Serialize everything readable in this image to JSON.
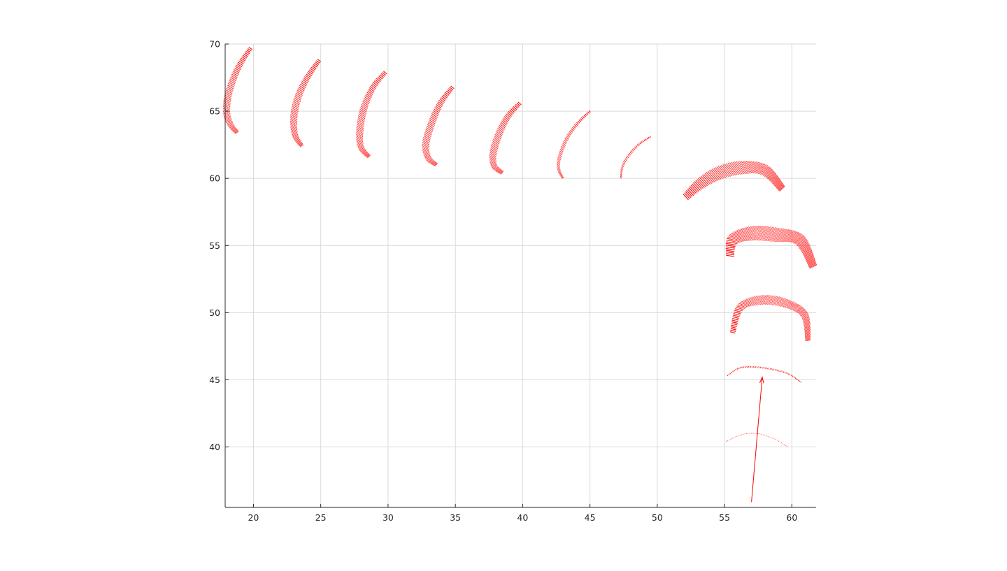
{
  "chart_data": {
    "type": "line",
    "title": "",
    "xlabel": "",
    "ylabel": "",
    "xlim": [
      17.9,
      61.8
    ],
    "ylim": [
      35.5,
      70
    ],
    "xticks": [
      20,
      25,
      30,
      35,
      40,
      45,
      50,
      55,
      60
    ],
    "yticks": [
      40,
      45,
      50,
      55,
      60,
      65,
      70
    ],
    "grid": true,
    "colors": {
      "series": "#ff0000",
      "grid": "#d9d9d9",
      "axis": "#262626"
    },
    "series": [
      {
        "kind": "wavefront",
        "rays": 14,
        "points": [
          [
            19.8,
            69.7
          ],
          [
            18.9,
            68.3
          ],
          [
            18.2,
            66.5
          ],
          [
            18.0,
            65.0
          ],
          [
            18.3,
            64.0
          ],
          [
            18.8,
            63.4
          ]
        ]
      },
      {
        "kind": "wavefront",
        "rays": 14,
        "points": [
          [
            24.9,
            68.8
          ],
          [
            24.0,
            67.5
          ],
          [
            23.3,
            66.0
          ],
          [
            23.0,
            64.5
          ],
          [
            23.1,
            63.2
          ],
          [
            23.6,
            62.4
          ]
        ]
      },
      {
        "kind": "wavefront",
        "rays": 14,
        "points": [
          [
            29.8,
            67.9
          ],
          [
            28.9,
            66.8
          ],
          [
            28.2,
            65.2
          ],
          [
            27.9,
            63.5
          ],
          [
            28.0,
            62.3
          ],
          [
            28.6,
            61.6
          ]
        ]
      },
      {
        "kind": "wavefront",
        "rays": 14,
        "points": [
          [
            34.8,
            66.8
          ],
          [
            33.9,
            65.6
          ],
          [
            33.2,
            64.0
          ],
          [
            32.8,
            62.5
          ],
          [
            33.0,
            61.5
          ],
          [
            33.6,
            61.0
          ]
        ]
      },
      {
        "kind": "wavefront",
        "rays": 14,
        "points": [
          [
            39.8,
            65.6
          ],
          [
            38.9,
            64.6
          ],
          [
            38.2,
            63.2
          ],
          [
            37.8,
            61.8
          ],
          [
            37.9,
            60.9
          ],
          [
            38.5,
            60.4
          ]
        ]
      },
      {
        "kind": "wavefront",
        "rays": 7,
        "points": [
          [
            45.0,
            65.0
          ],
          [
            44.0,
            64.0
          ],
          [
            43.2,
            62.8
          ],
          [
            42.7,
            61.4
          ],
          [
            42.7,
            60.6
          ],
          [
            43.0,
            60.0
          ]
        ]
      },
      {
        "kind": "wavefront",
        "rays": 5,
        "points": [
          [
            49.5,
            63.1
          ],
          [
            48.6,
            62.5
          ],
          [
            47.8,
            61.6
          ],
          [
            47.4,
            60.8
          ],
          [
            47.3,
            60.0
          ]
        ]
      },
      {
        "kind": "wavefront",
        "rays": 26,
        "points": [
          [
            52.1,
            58.6
          ],
          [
            53.2,
            59.6
          ],
          [
            54.6,
            60.4
          ],
          [
            56.3,
            60.8
          ],
          [
            58.0,
            60.6
          ],
          [
            59.3,
            59.2
          ]
        ]
      },
      {
        "kind": "wavefront",
        "rays": 28,
        "points": [
          [
            55.4,
            54.2
          ],
          [
            55.6,
            55.4
          ],
          [
            57.0,
            55.9
          ],
          [
            58.8,
            55.8
          ],
          [
            60.6,
            55.4
          ],
          [
            61.6,
            53.4
          ]
        ]
      },
      {
        "kind": "wavefront",
        "rays": 18,
        "points": [
          [
            55.6,
            48.5
          ],
          [
            56.1,
            50.3
          ],
          [
            57.4,
            50.9
          ],
          [
            59.2,
            50.8
          ],
          [
            60.9,
            49.9
          ],
          [
            61.2,
            47.9
          ]
        ]
      },
      {
        "kind": "wavefront",
        "rays": 3,
        "points": [
          [
            55.2,
            45.3
          ],
          [
            56.2,
            45.9
          ],
          [
            57.8,
            45.9
          ],
          [
            59.6,
            45.5
          ],
          [
            60.7,
            44.8
          ]
        ]
      },
      {
        "kind": "wavefront",
        "rays": 1,
        "points": [
          [
            55.1,
            40.4
          ],
          [
            56.2,
            40.9
          ],
          [
            57.4,
            41.0
          ],
          [
            58.7,
            40.6
          ],
          [
            59.7,
            40.0
          ]
        ]
      }
    ],
    "annotations": [
      {
        "kind": "arrow",
        "from": [
          57.0,
          35.9
        ],
        "to": [
          57.8,
          45.2
        ]
      }
    ]
  }
}
